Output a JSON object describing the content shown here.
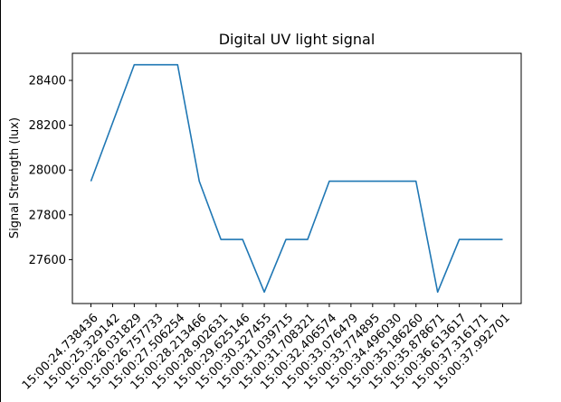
{
  "chart_data": {
    "type": "line",
    "title": "Digital UV light signal",
    "xlabel": "",
    "ylabel": "Signal Strength (lux)",
    "x": [
      "15:00:24.738436",
      "15:00:25.329142",
      "15:00:26.031829",
      "15:00:26.757733",
      "15:00:27.506254",
      "15:00:28.213466",
      "15:00:28.902631",
      "15:00:29.625146",
      "15:00:30.327455",
      "15:00:31.039715",
      "15:00:31.708321",
      "15:00:32.406574",
      "15:00:33.076479",
      "15:00:33.774895",
      "15:00:34.496030",
      "15:00:35.186260",
      "15:00:35.878671",
      "15:00:36.613617",
      "15:00:37.316171",
      "15:00:37.992701"
    ],
    "series": [
      {
        "values": [
          27950,
          28210,
          28470,
          28470,
          28470,
          27950,
          27690,
          27690,
          27455,
          27690,
          27690,
          27950,
          27950,
          27950,
          27950,
          27950,
          27455,
          27690,
          27690,
          27690
        ],
        "color": "#1f77b4"
      }
    ],
    "yticks": [
      27600,
      27800,
      28000,
      28200,
      28400
    ],
    "ylim": [
      27404,
      28521
    ],
    "grid": false,
    "legend": "none"
  }
}
